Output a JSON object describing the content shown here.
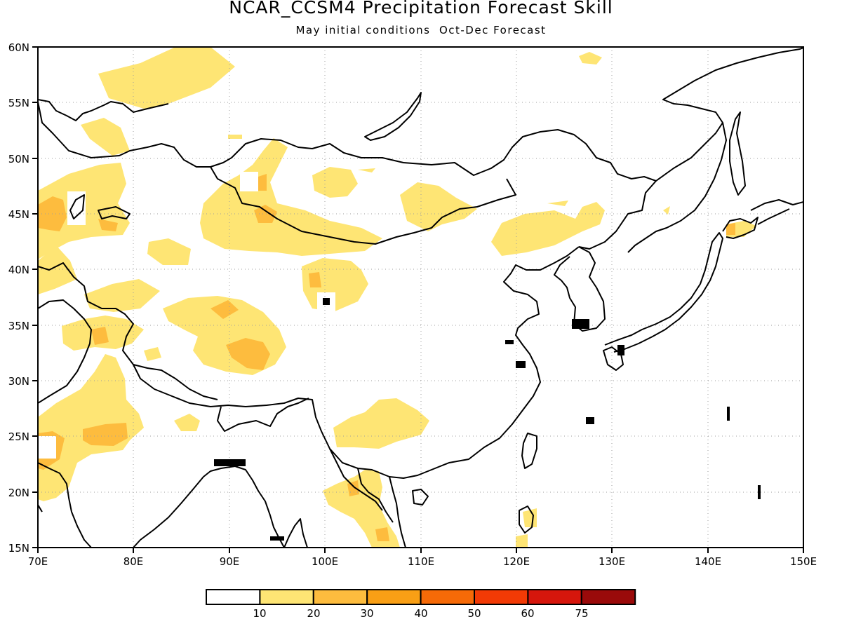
{
  "title": "NCAR_CCSM4 Precipitation Forecast Skill",
  "subtitle": "May initial conditions  Oct-Dec Forecast",
  "map": {
    "lon_range": [
      70,
      150
    ],
    "lat_range": [
      15,
      60
    ],
    "x_ticks": [
      "70E",
      "80E",
      "90E",
      "100E",
      "110E",
      "120E",
      "130E",
      "140E",
      "150E"
    ],
    "y_ticks": [
      "60N",
      "55N",
      "50N",
      "45N",
      "40N",
      "35N",
      "30N",
      "25N",
      "20N",
      "15N"
    ],
    "grid": "dotted"
  },
  "colorbar": {
    "labels": [
      "10",
      "20",
      "30",
      "40",
      "50",
      "60",
      "75"
    ],
    "colors": [
      "#ffffff",
      "#fee574",
      "#fdbc3e",
      "#f99f15",
      "#f66a07",
      "#f23a05",
      "#d6160c",
      "#9a0a0a"
    ]
  },
  "field_colors": {
    "low": "#fee574",
    "mid": "#fdbc3e"
  }
}
